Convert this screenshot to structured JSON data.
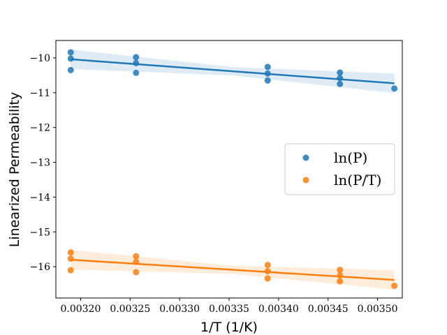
{
  "chart_data": {
    "type": "scatter",
    "title": "",
    "xlabel": "1/T (1/K)",
    "ylabel": "Linearized Permeability",
    "xlim": [
      0.003175,
      0.003525
    ],
    "ylim": [
      -16.9,
      -9.5
    ],
    "x_ticks": [
      0.0032,
      0.00325,
      0.0033,
      0.00335,
      0.0034,
      0.00345,
      0.0035
    ],
    "x_tick_labels": [
      "0.00320",
      "0.00325",
      "0.00330",
      "0.00335",
      "0.00340",
      "0.00345",
      "0.00350"
    ],
    "y_ticks": [
      -10,
      -11,
      -12,
      -13,
      -14,
      -15,
      -16
    ],
    "y_tick_labels": [
      "−10",
      "−11",
      "−12",
      "−13",
      "−14",
      "−15",
      "−16"
    ],
    "grid": false,
    "legend_position": "center-right",
    "series": [
      {
        "name": "ln(P)",
        "color": "#1f77b4",
        "x": [
          0.00319,
          0.00319,
          0.00319,
          0.003256,
          0.003256,
          0.003256,
          0.003389,
          0.003389,
          0.003389,
          0.003462,
          0.003462,
          0.003462,
          0.003517
        ],
        "y": [
          -9.84,
          -10.02,
          -10.35,
          -9.98,
          -10.15,
          -10.43,
          -10.26,
          -10.45,
          -10.65,
          -10.42,
          -10.58,
          -10.75,
          -10.88
        ],
        "fit": {
          "x": [
            0.00319,
            0.003517
          ],
          "y": [
            -10.04,
            -10.73
          ]
        }
      },
      {
        "name": "ln(P/T)",
        "color": "#ff7f0e",
        "x": [
          0.00319,
          0.00319,
          0.00319,
          0.003256,
          0.003256,
          0.003256,
          0.003389,
          0.003389,
          0.003389,
          0.003462,
          0.003462,
          0.003462,
          0.003517
        ],
        "y": [
          -15.59,
          -15.77,
          -16.1,
          -15.7,
          -15.86,
          -16.16,
          -15.95,
          -16.13,
          -16.34,
          -16.09,
          -16.25,
          -16.42,
          -16.55
        ],
        "fit": {
          "x": [
            0.00319,
            0.003517
          ],
          "y": [
            -15.8,
            -16.38
          ]
        }
      }
    ],
    "legend": [
      {
        "label": "ln(P)",
        "color": "#1f77b4"
      },
      {
        "label": "ln(P/T)",
        "color": "#ff7f0e"
      }
    ]
  }
}
